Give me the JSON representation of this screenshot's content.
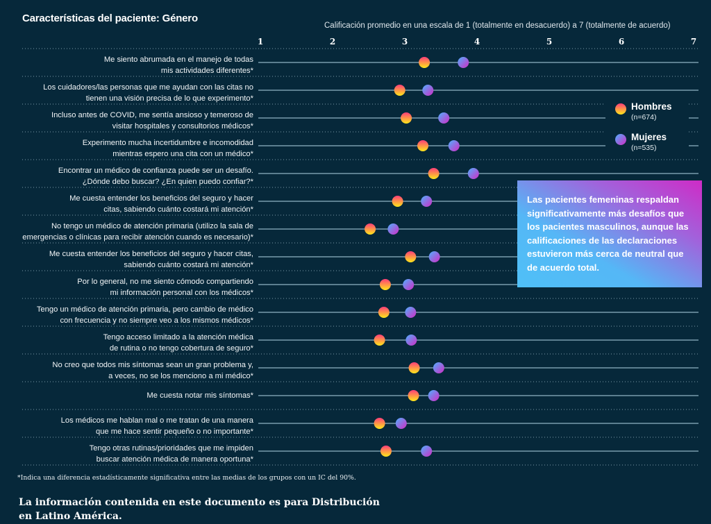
{
  "title": "Características del paciente: Género",
  "colors": {
    "background": "#06283a",
    "row_line": "#8fb3c4",
    "separator": "#7f9cab",
    "hombres_gradient": [
      "#ff3d78",
      "#ffe81a"
    ],
    "mujeres_gradient": [
      "#4fb0ff",
      "#d22cc4"
    ],
    "callout_gradient": [
      "#4fc0f7",
      "#cf2bc6"
    ]
  },
  "chart_data": {
    "type": "scatter",
    "subtype": "dot-plot",
    "title": "Características del paciente: Género",
    "xlabel": "Calificación promedio en una escala de 1 (totalmente en desacuerdo) a 7 (totalmente de acuerdo)",
    "xlim": [
      1,
      7
    ],
    "xticks": [
      "1",
      "2",
      "3",
      "4",
      "5",
      "6",
      "7"
    ],
    "legend_position": "right",
    "series": [
      {
        "name": "Hombres",
        "n_label": "(n=674)",
        "values": [
          3.27,
          2.93,
          3.02,
          3.25,
          3.4,
          2.9,
          2.52,
          3.08,
          2.73,
          2.71,
          2.65,
          3.13,
          3.12,
          2.65,
          2.74
        ]
      },
      {
        "name": "Mujeres",
        "n_label": "(n=535)",
        "values": [
          3.81,
          3.32,
          3.54,
          3.68,
          3.95,
          3.3,
          2.84,
          3.41,
          3.05,
          3.08,
          3.09,
          3.47,
          3.4,
          2.95,
          3.3
        ]
      }
    ],
    "categories": [
      [
        "Me siento abrumada en el manejo de todas",
        "mis actividades diferentes*"
      ],
      [
        "Los cuidadores/las personas que me ayudan con las citas no",
        "tienen una visión precisa de lo que experimento*"
      ],
      [
        "Incluso antes de COVID, me sentía ansioso y temeroso de",
        "visitar hospitales y consultorios médicos*"
      ],
      [
        "Experimento mucha incertidumbre e incomodidad",
        "mientras espero una cita con un médico*"
      ],
      [
        "Encontrar un médico de confianza puede ser un desafío.",
        "¿Dónde debo buscar? ¿En quien puedo confiar?*"
      ],
      [
        "Me cuesta entender los beneficios del seguro y hacer",
        "citas, sabiendo cuánto costará mi atención*"
      ],
      [
        "No tengo un médico de atención primaria (utilizo la sala de",
        "emergencias o clínicas para recibir atención cuando es necesario)*"
      ],
      [
        "Me cuesta entender los beneficios del seguro y hacer citas,",
        "sabiendo cuánto costará mi atención*"
      ],
      [
        "Por lo general, no me siento cómodo compartiendo",
        "mi información personal con los médicos*"
      ],
      [
        "Tengo un médico de atención primaria, pero cambio de médico",
        "con frecuencia y no siempre veo a los mismos médicos*"
      ],
      [
        "Tengo acceso limitado a la atención médica",
        "de rutina o no tengo cobertura de seguro*"
      ],
      [
        "No creo que todos mis síntomas sean un gran problema y,",
        "a veces, no se los menciono a mi médico*"
      ],
      [
        "Me cuesta notar mis síntomas*"
      ],
      [
        "Los médicos me hablan mal o me tratan de una manera",
        "que me hace sentir pequeño o no importante*"
      ],
      [
        "Tengo otras rutinas/prioridades que me impiden",
        "buscar atención médica de manera oportuna*"
      ]
    ]
  },
  "legend": {
    "hombres": {
      "name": "Hombres",
      "n": "(n=674)"
    },
    "mujeres": {
      "name": "Mujeres",
      "n": "(n=535)"
    }
  },
  "callout": "Las pacientes femeninas respaldan significativamente más desafíos que los pacientes masculinos, aunque las calificaciones de las declaraciones estuvieron más cerca de neutral que de acuerdo total.",
  "footnote": "*Indica una diferencia estadísticamente significativa entre las medias de los grupos con un IC del 90%.",
  "disclaimer": "La información contenida en este documento es para Distribución en Latino América."
}
